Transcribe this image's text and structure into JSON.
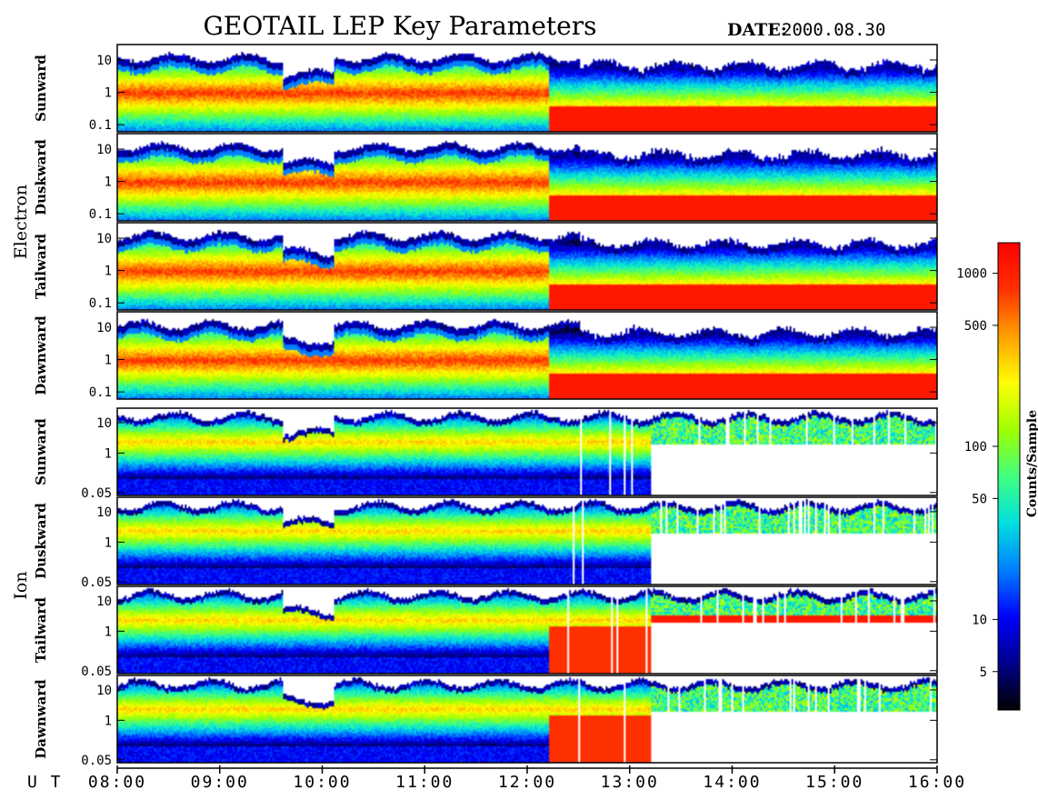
{
  "chart_data": {
    "type": "heatmap",
    "title": "GEOTAIL LEP Key Parameters",
    "date_label": "DATE:",
    "date_value": "2000.08.30",
    "x_axis": {
      "label": "U T",
      "ticks": [
        "08:00",
        "09:00",
        "10:00",
        "11:00",
        "12:00",
        "13:00",
        "14:00",
        "15:00",
        "16:00"
      ],
      "range_hours": [
        8,
        16
      ]
    },
    "groups": [
      {
        "name": "Electron",
        "yticks": [
          "10",
          "1",
          "0.1"
        ],
        "ylog_range": [
          0.06,
          30
        ],
        "panels": [
          {
            "label": "Sunward"
          },
          {
            "label": "Duskward"
          },
          {
            "label": "Tailward"
          },
          {
            "label": "Dawnward"
          }
        ]
      },
      {
        "name": "Ion",
        "yticks": [
          "10",
          "1",
          "0.05"
        ],
        "ylog_range": [
          0.04,
          30
        ],
        "panels": [
          {
            "label": "Sunward"
          },
          {
            "label": "Duskward"
          },
          {
            "label": "Tailward"
          },
          {
            "label": "Dawnward"
          }
        ]
      }
    ],
    "colorbar": {
      "label": "Counts/Sample",
      "scale": "log",
      "range": [
        3,
        1500
      ],
      "ticks": [
        "1000",
        "500",
        "100",
        "50",
        "10",
        "5"
      ],
      "colors": [
        "#000000",
        "#00008b",
        "#0000ff",
        "#0080ff",
        "#00e0e0",
        "#40ff80",
        "#a0ff00",
        "#ffff00",
        "#ffa000",
        "#ff3000",
        "#ff0000"
      ]
    },
    "legend": "none",
    "grid": false
  }
}
